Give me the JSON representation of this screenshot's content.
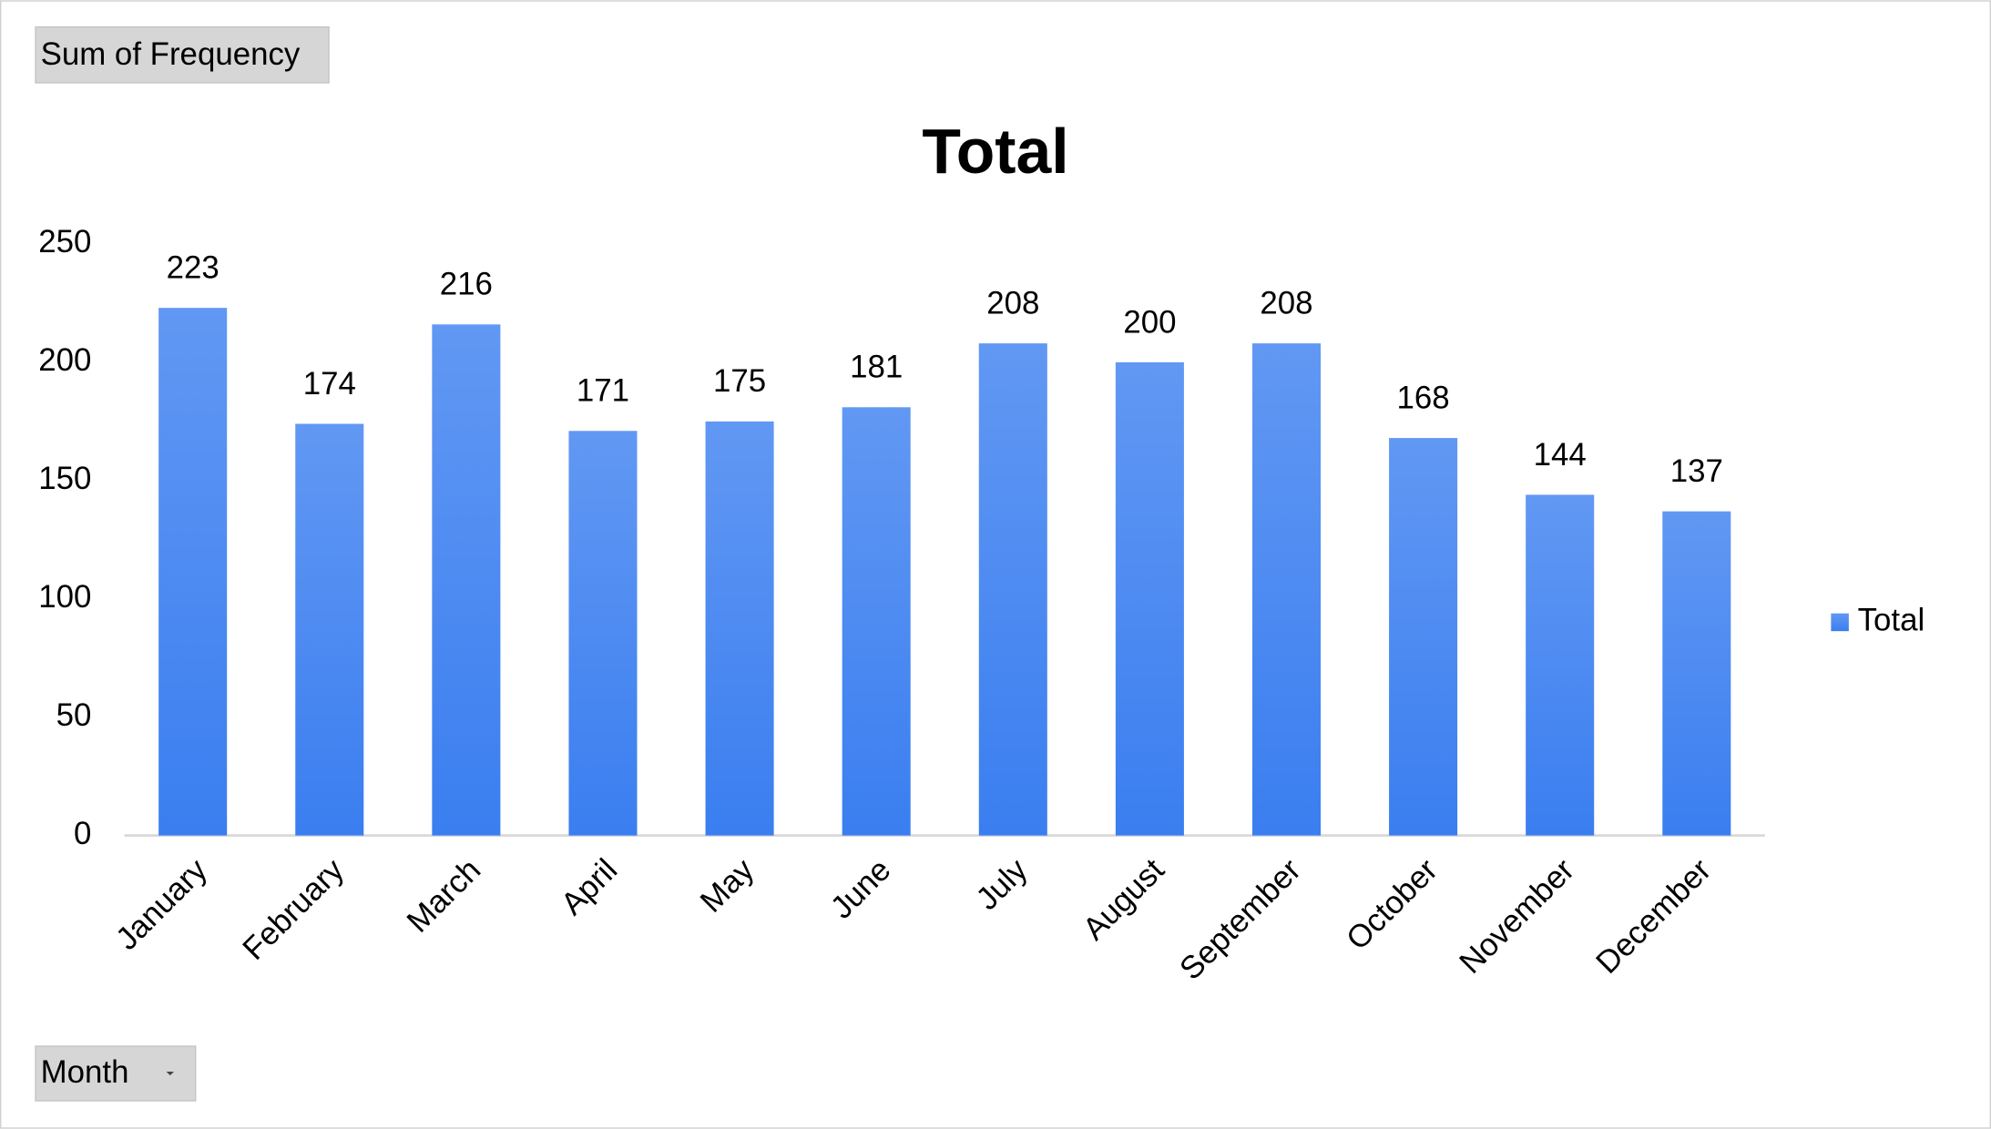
{
  "field_buttons": {
    "values": "Sum of Frequency",
    "axis": "Month"
  },
  "chart_data": {
    "type": "bar",
    "title": "Total",
    "categories": [
      "January",
      "February",
      "March",
      "April",
      "May",
      "June",
      "July",
      "August",
      "September",
      "October",
      "November",
      "December"
    ],
    "series": [
      {
        "name": "Total",
        "color": "#3a7ef0",
        "values": [
          223,
          174,
          216,
          171,
          175,
          181,
          208,
          200,
          208,
          168,
          144,
          137
        ]
      }
    ],
    "ylim": [
      0,
      250
    ],
    "yticks": [
      0,
      50,
      100,
      150,
      200,
      250
    ],
    "grid": false,
    "legend": "right",
    "data_labels": true
  }
}
